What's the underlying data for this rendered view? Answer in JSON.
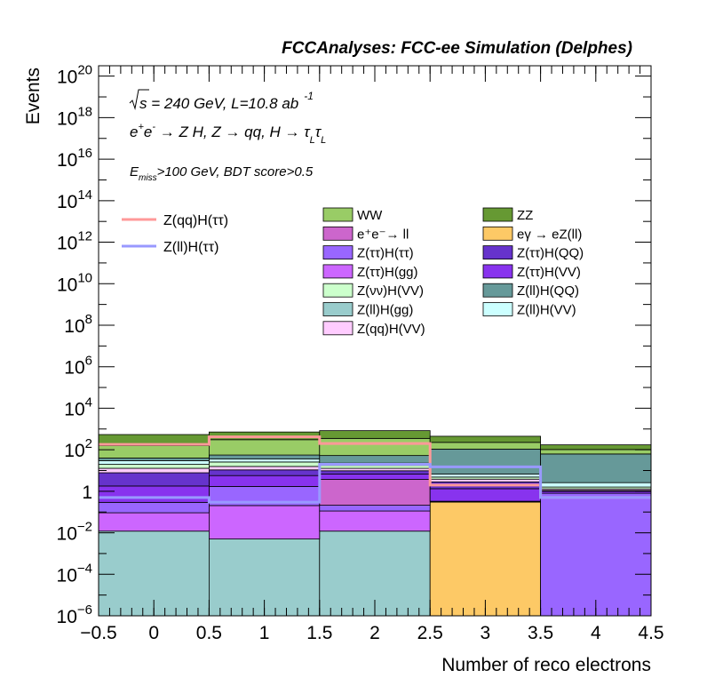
{
  "chart_data": {
    "type": "bar",
    "stacked": true,
    "yscale": "log",
    "title": "FCCAnalyses: FCC-ee Simulation (Delphes)",
    "xlabel": "Number of reco electrons",
    "ylabel": "Events",
    "xlim": [
      -0.5,
      4.5
    ],
    "ylim_exp": [
      -6,
      20.5
    ],
    "x_bin_edges": [
      -0.5,
      0.5,
      1.5,
      2.5,
      3.5,
      4.5
    ],
    "x_ticks": [
      "−0.5",
      "0",
      "0.5",
      "1",
      "1.5",
      "2",
      "2.5",
      "3",
      "3.5",
      "4",
      "4.5"
    ],
    "x_tick_values": [
      -0.5,
      0,
      0.5,
      1,
      1.5,
      2,
      2.5,
      3,
      3.5,
      4,
      4.5
    ],
    "y_ticks": [
      {
        "exp": -6,
        "base": "10",
        "sup": "−6"
      },
      {
        "exp": -4,
        "base": "10",
        "sup": "−4"
      },
      {
        "exp": -2,
        "base": "10",
        "sup": "−2"
      },
      {
        "exp": 0,
        "base": "1",
        "sup": ""
      },
      {
        "exp": 2,
        "base": "10",
        "sup": "2"
      },
      {
        "exp": 4,
        "base": "10",
        "sup": "4"
      },
      {
        "exp": 6,
        "base": "10",
        "sup": "6"
      },
      {
        "exp": 8,
        "base": "10",
        "sup": "8"
      },
      {
        "exp": 10,
        "base": "10",
        "sup": "10"
      },
      {
        "exp": 12,
        "base": "10",
        "sup": "12"
      },
      {
        "exp": 14,
        "base": "10",
        "sup": "14"
      },
      {
        "exp": 16,
        "base": "10",
        "sup": "16"
      },
      {
        "exp": 18,
        "base": "10",
        "sup": "18"
      },
      {
        "exp": 20,
        "base": "10",
        "sup": "20"
      }
    ],
    "annotations": {
      "energy": {
        "s": "s",
        "rest": " = 240 GeV, L=10.8 ab",
        "sup": "-1"
      },
      "process": {
        "a": "e",
        "a_sup": "+",
        "b": "e",
        "b_sup": "-",
        "c": " → Z H, Z  → qq, H  → τ",
        "c_sub": "L",
        "d": "τ",
        "d_sub": "L"
      },
      "selection": {
        "a": "E",
        "sub": "miss",
        "b": ">100 GeV, BDT score>0.5"
      }
    },
    "series": [
      {
        "name": "Z(ll)H(gg)",
        "color": "#99cccc",
        "values": [
          0.012,
          0.005,
          0.012,
          0,
          0
        ]
      },
      {
        "name": "eγ → eZ(ll)",
        "color": "#fdc966",
        "values": [
          0,
          0,
          0,
          0.3,
          0
        ]
      },
      {
        "name": "Z(ττ)H(gg)",
        "color": "#cc66ff",
        "values": [
          0.08,
          0.2,
          0.1,
          0.01,
          0
        ]
      },
      {
        "name": "Z(ττ)H(ττ)",
        "color": "#9966ff",
        "values": [
          0.2,
          1.5,
          0.1,
          0.02,
          0.8
        ]
      },
      {
        "name": "e⁺e⁻→ ll",
        "color": "#cc66cc",
        "values": [
          0,
          0,
          3.5,
          0,
          0
        ]
      },
      {
        "name": "Z(ττ)H(VV)",
        "color": "#8833ee",
        "values": [
          1.5,
          4,
          3,
          1.0,
          0.2
        ]
      },
      {
        "name": "Z(ττ)H(QQ)",
        "color": "#6633cc",
        "values": [
          6,
          5,
          3,
          1.5,
          0.1
        ]
      },
      {
        "name": "Z(qq)H(VV)",
        "color": "#ffccff",
        "values": [
          5,
          5,
          3,
          1,
          0.2
        ]
      },
      {
        "name": "Z(νν)H(VV)",
        "color": "#ccffcc",
        "values": [
          7,
          10,
          5,
          1,
          0.3
        ]
      },
      {
        "name": "Z(ll)H(VV)",
        "color": "#ccffff",
        "values": [
          10,
          10,
          5,
          2,
          1
        ]
      },
      {
        "name": "Z(ll)H(QQ)",
        "color": "#669999",
        "values": [
          10,
          20,
          30,
          100,
          60
        ]
      },
      {
        "name": "WW",
        "color": "#99cc66",
        "values": [
          120,
          250,
          300,
          120,
          40
        ]
      },
      {
        "name": "ZZ",
        "color": "#669933",
        "values": [
          380,
          410,
          480,
          220,
          70
        ]
      }
    ],
    "signal": [
      {
        "name": "Z(qq)H(ττ)",
        "color": "#ff9999",
        "values": [
          180,
          420,
          200,
          2,
          0.5
        ]
      },
      {
        "name": "Z(ll)H(ττ)",
        "color": "#9999ff",
        "values": [
          0.5,
          0.3,
          20,
          15,
          0.5
        ]
      }
    ],
    "legend": {
      "signal_placement": "left",
      "grid_left": [
        "WW",
        "e⁺e⁻→ ll",
        "Z(ττ)H(ττ)",
        "Z(ττ)H(gg)",
        "Z(νν)H(VV)",
        "Z(ll)H(gg)",
        "Z(qq)H(VV)"
      ],
      "grid_right": [
        "ZZ",
        "eγ → eZ(ll)",
        "Z(ττ)H(QQ)",
        "Z(ττ)H(VV)",
        "Z(ll)H(QQ)",
        "Z(ll)H(VV)"
      ]
    }
  }
}
